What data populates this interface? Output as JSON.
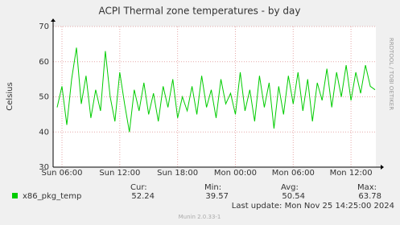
{
  "chart_data": {
    "type": "line",
    "title": "ACPI Thermal zone temperatures - by day",
    "y_label": "Celsius",
    "side_text": "RRDTOOL / TOBI OETIKER",
    "x": [
      5.5,
      6,
      6.5,
      7,
      7.5,
      8,
      8.5,
      9,
      9.5,
      10,
      10.5,
      11,
      11.5,
      12,
      12.5,
      13,
      13.5,
      14,
      14.5,
      15,
      15.5,
      16,
      16.5,
      17,
      17.5,
      18,
      18.5,
      19,
      19.5,
      20,
      20.5,
      21,
      21.5,
      22,
      22.5,
      23,
      23.5,
      24,
      24.5,
      25,
      25.5,
      26,
      26.5,
      27,
      27.5,
      28,
      28.5,
      29,
      29.5,
      30,
      30.5,
      31,
      31.5,
      32,
      32.5,
      33,
      33.5,
      34,
      34.5,
      35,
      35.5,
      36,
      36.5,
      37,
      37.5,
      38,
      38.5
    ],
    "series": [
      {
        "name": "x86_pkg_temp",
        "color": "#00cc00",
        "values": [
          47,
          53,
          42,
          55,
          64,
          48,
          56,
          44,
          52,
          46,
          63,
          50,
          43,
          57,
          48,
          40,
          52,
          46,
          54,
          45,
          51,
          43,
          53,
          47,
          55,
          44,
          50,
          46,
          53,
          45,
          56,
          47,
          52,
          44,
          55,
          48,
          51,
          45,
          57,
          46,
          52,
          43,
          56,
          47,
          54,
          41,
          53,
          45,
          56,
          48,
          57,
          46,
          55,
          43,
          54,
          49,
          58,
          47,
          57,
          50,
          59,
          49,
          57,
          51,
          59,
          53,
          52
        ]
      }
    ],
    "xlim": [
      5.08,
      38.58
    ],
    "xticks": [
      {
        "value": 6,
        "label": "Sun 06:00"
      },
      {
        "value": 12,
        "label": "Sun 12:00"
      },
      {
        "value": 18,
        "label": "Sun 18:00"
      },
      {
        "value": 24,
        "label": "Mon 00:00"
      },
      {
        "value": 30,
        "label": "Mon 06:00"
      },
      {
        "value": 36,
        "label": "Mon 12:00"
      }
    ],
    "ylim": [
      30,
      70
    ],
    "yticks": [
      30,
      40,
      50,
      60,
      70
    ],
    "grid": true,
    "stats": [
      {
        "label": "Cur:",
        "value": 52.24
      },
      {
        "label": "Min:",
        "value": 39.57
      },
      {
        "label": "Avg:",
        "value": 50.54
      },
      {
        "label": "Max:",
        "value": 63.78
      }
    ],
    "last_update": "Last update: Mon Nov 25 14:25:00 2024",
    "footer": "Munin 2.0.33-1"
  }
}
